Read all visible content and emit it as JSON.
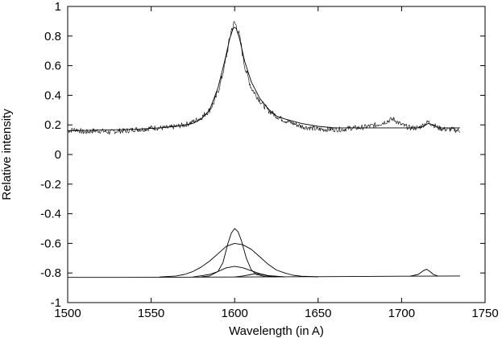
{
  "chart_data": {
    "type": "line",
    "title": "",
    "xlabel": "Wavelength (in A)",
    "ylabel": "Relative intensity",
    "xlim": [
      1500,
      1750
    ],
    "ylim": [
      -1,
      1
    ],
    "xticks": [
      1500,
      1550,
      1600,
      1650,
      1700,
      1750
    ],
    "yticks": [
      -1,
      -0.8,
      -0.6,
      -0.4,
      -0.2,
      0,
      0.2,
      0.4,
      0.6,
      0.8,
      1
    ],
    "xtick_labels": [
      "1500",
      "1550",
      "1600",
      "1650",
      "1700",
      "1750"
    ],
    "ytick_labels": [
      "-1",
      "-0.8",
      "-0.6",
      "-0.4",
      "-0.2",
      "0",
      "0.2",
      "0.4",
      "0.6",
      "0.8",
      "1"
    ],
    "grid": false,
    "legend": "none",
    "series": [
      {
        "style": "noisy",
        "color": "#000000",
        "x": [
          1500,
          1505,
          1510,
          1515,
          1520,
          1525,
          1530,
          1535,
          1540,
          1545,
          1550,
          1555,
          1560,
          1565,
          1570,
          1575,
          1580,
          1585,
          1588,
          1591,
          1594,
          1596,
          1598,
          1600,
          1602,
          1604,
          1606,
          1608,
          1610,
          1613,
          1616,
          1620,
          1625,
          1630,
          1635,
          1640,
          1645,
          1650,
          1655,
          1660,
          1665,
          1670,
          1675,
          1680,
          1685,
          1690,
          1695,
          1700,
          1705,
          1710,
          1713,
          1716,
          1719,
          1722,
          1726,
          1730,
          1735
        ],
        "y": [
          0.16,
          0.17,
          0.15,
          0.16,
          0.16,
          0.15,
          0.16,
          0.16,
          0.17,
          0.17,
          0.18,
          0.18,
          0.18,
          0.19,
          0.2,
          0.22,
          0.25,
          0.3,
          0.36,
          0.46,
          0.6,
          0.72,
          0.84,
          0.89,
          0.84,
          0.73,
          0.6,
          0.52,
          0.45,
          0.4,
          0.35,
          0.3,
          0.26,
          0.23,
          0.21,
          0.19,
          0.18,
          0.17,
          0.17,
          0.17,
          0.17,
          0.18,
          0.18,
          0.19,
          0.2,
          0.22,
          0.24,
          0.2,
          0.18,
          0.18,
          0.2,
          0.22,
          0.2,
          0.18,
          0.17,
          0.17,
          0.16
        ]
      },
      {
        "style": "fit",
        "color": "#000000",
        "x": [
          1500,
          1520,
          1540,
          1555,
          1565,
          1575,
          1580,
          1585,
          1590,
          1594,
          1597,
          1599,
          1600,
          1601,
          1603,
          1606,
          1610,
          1615,
          1620,
          1625,
          1630,
          1640,
          1650,
          1660,
          1680,
          1700,
          1705,
          1710,
          1713,
          1716,
          1719,
          1722,
          1726,
          1730,
          1735
        ],
        "y": [
          0.16,
          0.165,
          0.17,
          0.18,
          0.19,
          0.21,
          0.24,
          0.3,
          0.45,
          0.63,
          0.78,
          0.85,
          0.86,
          0.85,
          0.78,
          0.63,
          0.49,
          0.38,
          0.31,
          0.26,
          0.24,
          0.21,
          0.19,
          0.18,
          0.18,
          0.18,
          0.18,
          0.18,
          0.19,
          0.21,
          0.2,
          0.18,
          0.18,
          0.18,
          0.18
        ]
      },
      {
        "style": "baseline",
        "color": "#000000",
        "x": [
          1500,
          1530,
          1600,
          1650,
          1700,
          1735
        ],
        "y": [
          -0.83,
          -0.83,
          -0.827,
          -0.825,
          -0.822,
          -0.82
        ]
      },
      {
        "style": "component",
        "color": "#000000",
        "x": [
          1555,
          1565,
          1570,
          1575,
          1580,
          1585,
          1590,
          1595,
          1600,
          1605,
          1610,
          1615,
          1620,
          1625,
          1630,
          1635,
          1640,
          1650
        ],
        "y": [
          -0.827,
          -0.82,
          -0.81,
          -0.79,
          -0.76,
          -0.72,
          -0.67,
          -0.62,
          -0.6,
          -0.61,
          -0.64,
          -0.69,
          -0.74,
          -0.78,
          -0.8,
          -0.815,
          -0.822,
          -0.826
        ]
      },
      {
        "style": "component",
        "color": "#000000",
        "x": [
          1580,
          1585,
          1590,
          1593,
          1596,
          1598,
          1600,
          1602,
          1604,
          1607,
          1610,
          1613,
          1618,
          1625
        ],
        "y": [
          -0.826,
          -0.82,
          -0.79,
          -0.73,
          -0.6,
          -0.53,
          -0.5,
          -0.52,
          -0.58,
          -0.7,
          -0.78,
          -0.81,
          -0.824,
          -0.827
        ]
      },
      {
        "style": "component",
        "color": "#000000",
        "x": [
          1575,
          1585,
          1590,
          1595,
          1600,
          1605,
          1610,
          1615,
          1620,
          1630
        ],
        "y": [
          -0.827,
          -0.81,
          -0.79,
          -0.765,
          -0.755,
          -0.765,
          -0.785,
          -0.805,
          -0.818,
          -0.826
        ]
      },
      {
        "style": "component",
        "color": "#000000",
        "x": [
          1600,
          1605,
          1610,
          1613,
          1616,
          1620,
          1625
        ],
        "y": [
          -0.827,
          -0.82,
          -0.81,
          -0.805,
          -0.81,
          -0.82,
          -0.827
        ]
      },
      {
        "style": "component",
        "color": "#000000",
        "x": [
          1705,
          1710,
          1713,
          1715,
          1717,
          1719,
          1722
        ],
        "y": [
          -0.822,
          -0.81,
          -0.785,
          -0.775,
          -0.79,
          -0.81,
          -0.822
        ]
      }
    ]
  }
}
